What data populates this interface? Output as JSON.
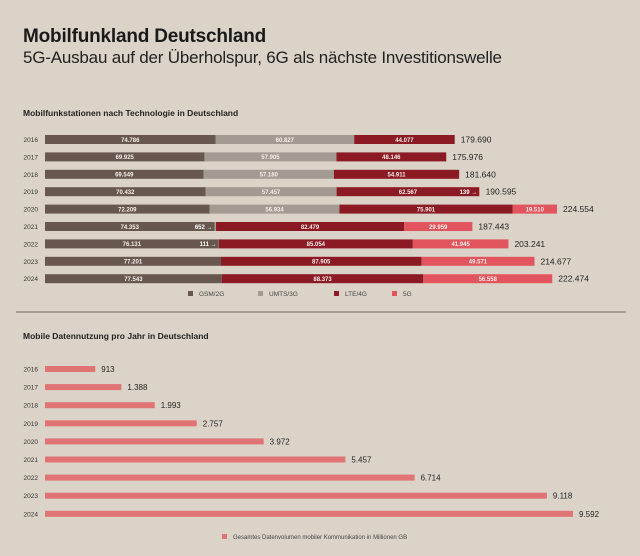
{
  "header": {
    "title": "Mobilfunkland Deutschland",
    "subtitle": "5G-Ausbau auf der Überholspur, 6G als nächste Investitionswelle"
  },
  "colors": {
    "background": "#dbd3c8",
    "gsm": "#67574f",
    "umts": "#a39a92",
    "lte": "#8b1a24",
    "fiveg": "#e2555e",
    "data_bar": "#e07373"
  },
  "chart_data": [
    {
      "type": "bar",
      "orientation": "horizontal",
      "stacked": true,
      "title": "Mobilfunkstationen nach Technologie in Deutschland",
      "categories": [
        "2016",
        "2017",
        "2018",
        "2019",
        "2020",
        "2021",
        "2022",
        "2023",
        "2024"
      ],
      "series": [
        {
          "name": "GSM/2G",
          "values": [
            74786,
            69925,
            69549,
            70432,
            72209,
            74353,
            76131,
            77201,
            77543
          ],
          "labels": [
            "74.786",
            "69.925",
            "69.549",
            "70.432",
            "72.209",
            "74.353",
            "76.131",
            "77.201",
            "77.543"
          ]
        },
        {
          "name": "UMTS/3G",
          "values": [
            60827,
            57905,
            57180,
            57457,
            56934,
            652,
            111,
            0,
            0
          ],
          "labels": [
            "60.827",
            "57.905",
            "57.180",
            "57.457",
            "56.934",
            "652 →",
            "111 →",
            "",
            ""
          ]
        },
        {
          "name": "LTE/4G",
          "values": [
            44077,
            48146,
            54911,
            62567,
            75901,
            82479,
            85054,
            87905,
            88373
          ],
          "labels": [
            "44.077",
            "48.146",
            "54.911",
            "62.567",
            "75.901",
            "82.479",
            "85.054",
            "87.905",
            "88.373"
          ]
        },
        {
          "name": "5G",
          "values": [
            0,
            0,
            0,
            139,
            19510,
            29959,
            41945,
            49571,
            56558
          ],
          "labels": [
            "",
            "",
            "",
            "139 →",
            "19.510",
            "29.959",
            "41.945",
            "49.571",
            "56.558"
          ]
        }
      ],
      "totals": [
        "179.690",
        "175.976",
        "181.640",
        "190.595",
        "224.554",
        "187.443",
        "203.241",
        "214.677",
        "222.474"
      ],
      "legend": [
        "GSM/2G",
        "UMTS/3G",
        "LTE/4G",
        "5G"
      ],
      "legend_position": "bottom",
      "xlim": [
        0,
        224554
      ],
      "grid": false
    },
    {
      "type": "bar",
      "orientation": "horizontal",
      "title": "Mobile Datennutzung pro Jahr in Deutschland",
      "categories": [
        "2016",
        "2017",
        "2018",
        "2019",
        "2020",
        "2021",
        "2022",
        "2023",
        "2024"
      ],
      "values": [
        913,
        1388,
        1993,
        2757,
        3972,
        5457,
        6714,
        9118,
        9592
      ],
      "value_labels": [
        "913",
        "1.388",
        "1.993",
        "2.757",
        "3.972",
        "5.457",
        "6.714",
        "9.118",
        "9.592"
      ],
      "legend": [
        "Gesamtes Datenvolumen mobiler Kommunikation in Millionen GB"
      ],
      "legend_position": "bottom",
      "xlim": [
        0,
        9592
      ],
      "grid": false
    }
  ]
}
